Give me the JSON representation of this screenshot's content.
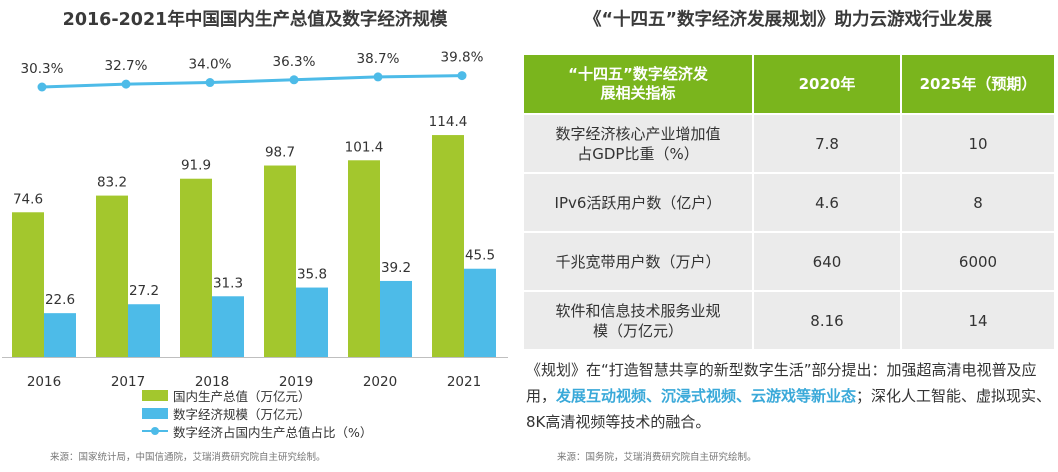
{
  "left": {
    "title": "2016-2021年中国国内生产总值及数字经济规模",
    "source": "来源：国家统计局，中国信通院，艾瑞消费研究院自主研究绘制。"
  },
  "chart_data": {
    "type": "bar",
    "title": "2016-2021年中国国内生产总值及数字经济规模",
    "categories": [
      "2016",
      "2017",
      "2018",
      "2019",
      "2020",
      "2021"
    ],
    "series": [
      {
        "name": "国内生产总值（万亿元）",
        "type": "bar",
        "color": "#a3c72d",
        "values": [
          74.6,
          83.2,
          91.9,
          98.7,
          101.4,
          114.4
        ]
      },
      {
        "name": "数字经济规模（万亿元）",
        "type": "bar",
        "color": "#4dbbe8",
        "values": [
          22.6,
          27.2,
          31.3,
          35.8,
          39.2,
          45.5
        ]
      },
      {
        "name": "数字经济占国内生产总值占比（%）",
        "type": "line",
        "color": "#4dbbe8",
        "values": [
          30.3,
          32.7,
          34.0,
          36.3,
          38.7,
          39.8
        ],
        "labels": [
          "30.3%",
          "32.7%",
          "34.0%",
          "36.3%",
          "38.7%",
          "39.8%"
        ]
      }
    ],
    "ylim": [
      0,
      120
    ],
    "line_ylim": [
      0,
      100
    ],
    "grid": false,
    "legend": "bottom"
  },
  "right": {
    "title": "《“十四五”数字经济发展规划》助力云游戏行业发展",
    "table": {
      "headers": [
        "“十四五”数字经济发展相关指标",
        "2020年",
        "2025年（预期）"
      ],
      "rows": [
        [
          "数字经济核心产业增加值占GDP比重（%）",
          "7.8",
          "10"
        ],
        [
          "IPv6活跃用户数（亿户）",
          "4.6",
          "8"
        ],
        [
          "千兆宽带用户数（万户）",
          "640",
          "6000"
        ],
        [
          "软件和信息技术服务业规模（万亿元）",
          "8.16",
          "14"
        ]
      ]
    },
    "note": {
      "part1": "《规划》在“打造智慧共享的新型数字生活”部分提出：加强超高清电视普及应用，",
      "highlight": "发展互动视频、沉浸式视频、云游戏等新业态",
      "part2": "；深化人工智能、虚拟现实、8K高清视频等技术的融合。"
    },
    "source": "来源：国务院，艾瑞消费研究院自主研究绘制。"
  },
  "colors": {
    "gdp": "#a3c72d",
    "digital": "#4dbbe8",
    "header": "#7ab51d",
    "cell": "#ebebeb",
    "highlight": "#3aa9d9"
  }
}
